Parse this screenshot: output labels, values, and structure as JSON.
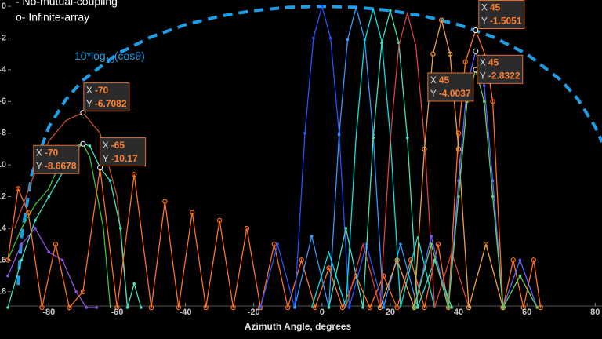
{
  "chart_data": {
    "type": "line",
    "legend": [
      "-  No-mutual-coupling",
      "o- Infinite-array"
    ],
    "annotation": {
      "text": "10*log",
      "sub": "10",
      "rest": "(cosθ)",
      "color": "#1e9ee6"
    },
    "xlabel": "Azimuth Angle, degrees",
    "xlim": [
      -92,
      82
    ],
    "ylim": [
      -19,
      0.4
    ],
    "xticks": [
      -80,
      -60,
      -40,
      -20,
      0,
      20,
      40,
      60,
      80
    ],
    "yticks": [
      0,
      -2,
      -4,
      -6,
      -8,
      -10,
      -12,
      -14,
      -16,
      -18
    ],
    "envelope": {
      "color": "#1e9ee6",
      "x": [
        -89,
        -88,
        -85,
        -80,
        -75,
        -70,
        -60,
        -50,
        -40,
        -30,
        -20,
        -10,
        0,
        10,
        20,
        30,
        40,
        50,
        60,
        70,
        75,
        80,
        82
      ],
      "values": [
        -17.58,
        -14.57,
        -10.6,
        -7.604,
        -5.87,
        -4.66,
        -3.01,
        -1.919,
        -1.157,
        -0.625,
        -0.27,
        -0.066,
        0,
        -0.066,
        -0.27,
        -0.625,
        -1.157,
        -1.919,
        -3.01,
        -4.66,
        -5.87,
        -7.604,
        -8.56
      ]
    },
    "series": [
      {
        "color": "#c0502a",
        "marker": "none",
        "x": [
          -90,
          -85,
          -80,
          -75,
          -70,
          -65,
          -60,
          -57
        ],
        "values": [
          -14,
          -11,
          -8.5,
          -7.2,
          -6.7082,
          -8,
          -12,
          -19
        ]
      },
      {
        "color": "#40c040",
        "marker": "none",
        "x": [
          -92,
          -88,
          -84,
          -80,
          -76,
          -72,
          -70,
          -68,
          -64,
          -62
        ],
        "values": [
          -16,
          -14,
          -12.5,
          -11.5,
          -9.5,
          -8.8,
          -8.6678,
          -9.5,
          -14,
          -19
        ]
      },
      {
        "color": "#9050e0",
        "marker": "dot",
        "x": [
          -92,
          -88,
          -84,
          -80,
          -76,
          -72,
          -69,
          -66
        ],
        "values": [
          -17,
          -15,
          -14,
          -15.5,
          -16,
          -18,
          -19,
          -19
        ]
      },
      {
        "color": "#40e0c0",
        "marker": "dot",
        "x": [
          -92,
          -88,
          -84,
          -80,
          -76,
          -72,
          -70,
          -68,
          -65,
          -62,
          -59,
          -57,
          -55,
          -53
        ],
        "values": [
          -19,
          -16,
          -13.5,
          -12,
          -10.5,
          -9,
          -8.6678,
          -8.8,
          -10.17,
          -11,
          -14,
          -19,
          -17.5,
          -19
        ]
      },
      {
        "color": "#ff7020",
        "marker": "circle",
        "x": [
          -92,
          -89,
          -86,
          -82,
          -78,
          -74,
          -70,
          -65,
          -60,
          -55,
          -50,
          -46,
          -42,
          -38,
          -34,
          -30,
          -26,
          -22,
          -18,
          -14,
          -10,
          -6,
          -2,
          2,
          6,
          10,
          14,
          18,
          22,
          26,
          30,
          34,
          37,
          40,
          42,
          45,
          48,
          50,
          53,
          56,
          59,
          62,
          64
        ],
        "values": [
          -16,
          -11.5,
          -13,
          -19,
          -15,
          -19,
          -18,
          -10.2,
          -19,
          -10.6,
          -19,
          -12.3,
          -19,
          -13,
          -19,
          -13.5,
          -19,
          -14,
          -19,
          -15,
          -19,
          -16,
          -19,
          -16.5,
          -19,
          -17,
          -19,
          -17,
          -19,
          -16,
          -19,
          -15,
          -19,
          -8,
          -3.5,
          -1.5051,
          -3.2,
          -6,
          -19,
          -16,
          -19,
          -16,
          -19
        ]
      },
      {
        "color": "#2255ff",
        "marker": "dot",
        "x": [
          -18,
          -13,
          -8,
          -5,
          -2.5,
          0,
          2.5,
          5,
          8,
          13,
          18
        ],
        "values": [
          -19,
          -15,
          -19,
          -8,
          -2,
          0,
          -2,
          -8,
          -19,
          -15,
          -19
        ]
      },
      {
        "color": "#3399ff",
        "marker": "dot",
        "x": [
          -8,
          -3,
          2,
          5,
          7.5,
          10,
          12.5,
          15,
          18,
          23,
          28
        ],
        "values": [
          -19,
          -14.5,
          -19,
          -8.1,
          -2.1,
          -0.07,
          -2.1,
          -8.1,
          -19,
          -15,
          -19
        ]
      },
      {
        "color": "#00e5e5",
        "marker": "none",
        "x": [
          -3,
          2,
          7,
          10,
          12.5,
          15,
          17.5,
          20,
          23,
          28,
          33
        ],
        "values": [
          -19,
          -15.5,
          -19,
          -8.2,
          -2.2,
          -0.15,
          -2.2,
          -8.2,
          -19,
          -14.5,
          -19
        ]
      },
      {
        "color": "#40e0c0",
        "marker": "dot",
        "x": [
          2,
          7,
          12,
          15,
          17.5,
          20,
          22.5,
          25,
          28,
          33,
          38
        ],
        "values": [
          -19,
          -14,
          -19,
          -8.3,
          -2.3,
          -0.27,
          -2.3,
          -8.3,
          -19,
          -16,
          -19
        ]
      },
      {
        "color": "#e04040",
        "marker": "none",
        "x": [
          7,
          12,
          17,
          20,
          22.5,
          25,
          27.5,
          30,
          33,
          38,
          43
        ],
        "values": [
          -19,
          -15,
          -19,
          -8.4,
          -2.5,
          -0.44,
          -2.5,
          -8.4,
          -19,
          -15.5,
          -19
        ]
      },
      {
        "color": "#f0a040",
        "marker": "circle",
        "x": [
          17,
          22,
          27,
          30,
          32.5,
          35,
          37.5,
          40,
          43,
          48,
          53
        ],
        "values": [
          -19,
          -16,
          -19,
          -9,
          -3,
          -0.87,
          -3,
          -9,
          -19,
          -15,
          -19
        ]
      },
      {
        "color": "#6060ff",
        "marker": "dot",
        "x": [
          27,
          32,
          37,
          40,
          42.5,
          45,
          47.5,
          50,
          53,
          58,
          63
        ],
        "values": [
          -19,
          -14.5,
          -19,
          -11,
          -5,
          -2.8322,
          -5,
          -11,
          -19,
          -16,
          -19
        ]
      },
      {
        "color": "#60d060",
        "marker": "dot",
        "x": [
          27,
          32,
          37,
          40,
          42.5,
          45,
          47.5,
          50,
          53,
          58,
          63
        ],
        "values": [
          -19,
          -15,
          -19,
          -12,
          -6,
          -4.0037,
          -6,
          -12,
          -19,
          -17,
          -19
        ]
      }
    ],
    "datatip_x": "X",
    "datatip_y": "Y",
    "datatips": [
      {
        "x": -70,
        "y": -6.7082
      },
      {
        "x": -70,
        "y": -8.6678
      },
      {
        "x": -65,
        "y": -10.17
      },
      {
        "x": 45,
        "y": -1.5051
      },
      {
        "x": 45,
        "y": -4.0037
      },
      {
        "x": 45,
        "y": -2.8322
      }
    ]
  }
}
